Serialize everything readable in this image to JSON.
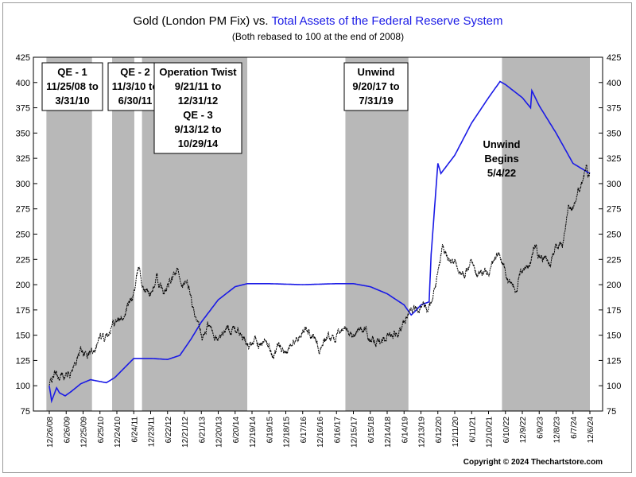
{
  "header": {
    "title_part1": "Gold (London PM Fix) vs. ",
    "title_part2": "Total Assets of the Federal Reserve System",
    "subtitle": "(Both rebased to 100 at the end of 2008)"
  },
  "footer": {
    "copyright": "Copyright © 2024 Thechartstore.com"
  },
  "colors": {
    "gold": "#000000",
    "fed": "#1a1ae6",
    "shade": "#b8b8b8",
    "title_accent": "#1a1ae6"
  },
  "chart_data": {
    "type": "line",
    "title": "Gold (London PM Fix) vs. Total Assets of the Federal Reserve System",
    "subtitle": "(Both rebased to 100 at the end of 2008)",
    "ylim": [
      75,
      425
    ],
    "yticks": [
      75,
      100,
      125,
      150,
      175,
      200,
      225,
      250,
      275,
      300,
      325,
      350,
      375,
      400,
      425
    ],
    "xlim": [
      "2008-12-26",
      "2024-12-06"
    ],
    "x_tick_labels": [
      "12/26/08",
      "6/26/09",
      "12/25/09",
      "6/25/10",
      "12/24/10",
      "6/24/11",
      "12/23/11",
      "6/22/12",
      "12/21/12",
      "6/21/13",
      "12/20/13",
      "6/20/14",
      "12/19/14",
      "6/19/15",
      "12/18/15",
      "6/17/16",
      "12/16/16",
      "6/16/17",
      "12/15/17",
      "6/15/18",
      "12/14/18",
      "6/14/19",
      "12/13/19",
      "6/12/20",
      "12/11/20",
      "6/11/21",
      "12/10/21",
      "6/10/22",
      "12/9/22",
      "6/9/23",
      "12/8/23",
      "6/7/24",
      "12/6/24"
    ],
    "shaded_periods": [
      {
        "start": "2008-11-25",
        "end": "2010-03-31",
        "label_lines": [
          "QE - 1",
          "11/25/08 to",
          "3/31/10"
        ]
      },
      {
        "start": "2010-11-03",
        "end": "2011-06-30",
        "label_lines": [
          "QE - 2",
          "11/3/10 to",
          "6/30/11"
        ]
      },
      {
        "start": "2011-09-21",
        "end": "2014-10-29",
        "label_lines": [
          "Operation Twist",
          "9/21/11 to",
          "12/31/12",
          "QE - 3",
          "9/13/12 to",
          "10/29/14"
        ]
      },
      {
        "start": "2017-09-20",
        "end": "2019-07-31",
        "label_lines": [
          "Unwind",
          "9/20/17 to",
          "7/31/19"
        ]
      },
      {
        "start": "2022-05-04",
        "end": "2024-12-06",
        "label_lines": [
          "Unwind",
          "Begins",
          "5/4/22"
        ]
      }
    ],
    "series": [
      {
        "name": "Gold (London PM Fix)",
        "color": "#000000",
        "x": [
          "2008-12-26",
          "2009-02-20",
          "2009-04-15",
          "2009-06-01",
          "2009-08-01",
          "2009-10-15",
          "2009-12-01",
          "2010-02-01",
          "2010-04-01",
          "2010-06-25",
          "2010-08-15",
          "2010-10-15",
          "2010-12-15",
          "2011-02-01",
          "2011-04-15",
          "2011-06-01",
          "2011-07-15",
          "2011-08-22",
          "2011-09-06",
          "2011-10-01",
          "2011-12-23",
          "2012-02-25",
          "2012-05-15",
          "2012-09-10",
          "2012-10-05",
          "2012-12-21",
          "2013-02-15",
          "2013-04-15",
          "2013-06-28",
          "2013-08-28",
          "2013-12-20",
          "2014-03-15",
          "2014-06-20",
          "2014-11-07",
          "2015-01-22",
          "2015-03-15",
          "2015-06-19",
          "2015-08-05",
          "2015-10-15",
          "2015-12-18",
          "2016-03-01",
          "2016-07-06",
          "2016-10-01",
          "2016-12-16",
          "2017-03-01",
          "2017-06-06",
          "2017-09-08",
          "2017-12-15",
          "2018-01-25",
          "2018-04-15",
          "2018-08-15",
          "2018-12-14",
          "2019-02-20",
          "2019-05-01",
          "2019-07-01",
          "2019-09-04",
          "2019-12-13",
          "2020-03-18",
          "2020-05-20",
          "2020-08-06",
          "2020-09-25",
          "2020-12-11",
          "2021-03-30",
          "2021-06-01",
          "2021-08-09",
          "2021-12-10",
          "2022-03-08",
          "2022-05-15",
          "2022-07-20",
          "2022-09-26",
          "2022-12-09",
          "2023-02-28",
          "2023-05-04",
          "2023-06-09",
          "2023-10-05",
          "2023-12-08",
          "2024-02-14",
          "2024-04-12",
          "2024-06-07",
          "2024-08-15",
          "2024-10-30",
          "2024-11-15",
          "2024-12-06"
        ],
        "values": [
          100,
          112,
          108,
          110,
          113,
          125,
          136,
          130,
          135,
          149,
          145,
          160,
          168,
          164,
          178,
          183,
          200,
          219,
          210,
          198,
          190,
          205,
          190,
          210,
          213,
          200,
          195,
          165,
          145,
          160,
          145,
          157,
          157,
          139,
          150,
          140,
          140,
          130,
          138,
          125,
          148,
          158,
          150,
          137,
          150,
          148,
          158,
          148,
          158,
          155,
          140,
          150,
          154,
          152,
          168,
          180,
          175,
          180,
          200,
          240,
          225,
          220,
          208,
          225,
          210,
          215,
          230,
          220,
          205,
          196,
          215,
          222,
          240,
          230,
          220,
          242,
          240,
          275,
          275,
          295,
          320,
          305,
          310
        ]
      },
      {
        "name": "Total Assets of the Federal Reserve System",
        "color": "#1a1ae6",
        "x": [
          "2008-12-26",
          "2009-01-20",
          "2009-03-15",
          "2009-04-15",
          "2009-06-15",
          "2009-08-15",
          "2009-12-01",
          "2010-03-15",
          "2010-09-01",
          "2010-12-01",
          "2011-06-24",
          "2011-09-01",
          "2012-01-01",
          "2012-06-22",
          "2012-11-01",
          "2013-03-01",
          "2013-06-21",
          "2013-12-20",
          "2014-06-20",
          "2014-10-29",
          "2015-06-19",
          "2016-06-17",
          "2017-06-16",
          "2017-12-15",
          "2018-06-15",
          "2018-12-14",
          "2019-06-14",
          "2019-08-30",
          "2019-10-15",
          "2019-12-13",
          "2020-03-10",
          "2020-04-01",
          "2020-06-12",
          "2020-07-15",
          "2020-12-11",
          "2021-06-11",
          "2021-12-10",
          "2022-04-13",
          "2022-06-10",
          "2022-12-09",
          "2023-03-08",
          "2023-03-22",
          "2023-06-09",
          "2023-12-08",
          "2024-06-07",
          "2024-12-06"
        ],
        "values": [
          100,
          85,
          98,
          93,
          90,
          94,
          102,
          106,
          103,
          108,
          127,
          127,
          127,
          126,
          130,
          146,
          163,
          185,
          198,
          201,
          201,
          200,
          201,
          201,
          198,
          191,
          180,
          170,
          174,
          180,
          183,
          230,
          320,
          310,
          328,
          360,
          385,
          401,
          398,
          385,
          375,
          392,
          377,
          350,
          320,
          310
        ]
      }
    ]
  }
}
